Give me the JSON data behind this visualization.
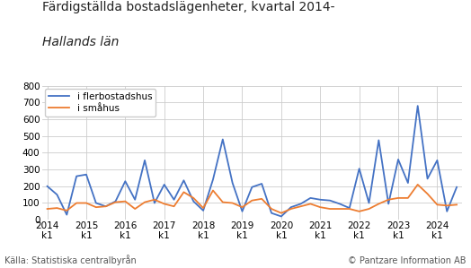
{
  "title_line1": "Färdigställda bostadslägenheter, kvartal 2014-",
  "title_line2": "Hallands län",
  "source_left": "Källa: Statistiska centralbyrån",
  "source_right": "© Pantzare Information AB",
  "legend_flerbostadshus": "i flerbostadshus",
  "legend_smahus": "i småhus",
  "color_flerbostadshus": "#4472C4",
  "color_smahus": "#ED7D31",
  "background_color": "#ffffff",
  "grid_color": "#cccccc",
  "ylim": [
    0,
    800
  ],
  "yticks": [
    0,
    100,
    200,
    300,
    400,
    500,
    600,
    700,
    800
  ],
  "flerbostadshus": [
    200,
    150,
    30,
    260,
    270,
    100,
    80,
    110,
    230,
    120,
    355,
    100,
    210,
    120,
    235,
    110,
    55,
    240,
    480,
    220,
    50,
    195,
    215,
    40,
    20,
    75,
    95,
    130,
    120,
    115,
    95,
    70,
    305,
    100,
    475,
    95,
    360,
    220,
    680,
    245,
    355,
    50,
    195
  ],
  "smahus": [
    65,
    70,
    55,
    100,
    100,
    75,
    80,
    105,
    110,
    65,
    105,
    120,
    95,
    80,
    165,
    130,
    70,
    175,
    105,
    100,
    75,
    115,
    125,
    65,
    40,
    65,
    80,
    95,
    75,
    65,
    65,
    65,
    50,
    65,
    95,
    120,
    130,
    130,
    210,
    155,
    90,
    85,
    90
  ],
  "xtick_positions": [
    0,
    4,
    8,
    12,
    16,
    20,
    24,
    28,
    32,
    36,
    40
  ],
  "xtick_labels": [
    "2014\nk1",
    "2015\nk1",
    "2016\nk1",
    "2017\nk1",
    "2018\nk1",
    "2019\nk1",
    "2020\nk1",
    "2021\nk1",
    "2022\nk1",
    "2023\nk1",
    "2024\nk1"
  ],
  "title1_fontsize": 10.0,
  "title2_fontsize": 10.0,
  "source_fontsize": 7.0,
  "tick_fontsize": 7.5,
  "legend_fontsize": 7.5
}
